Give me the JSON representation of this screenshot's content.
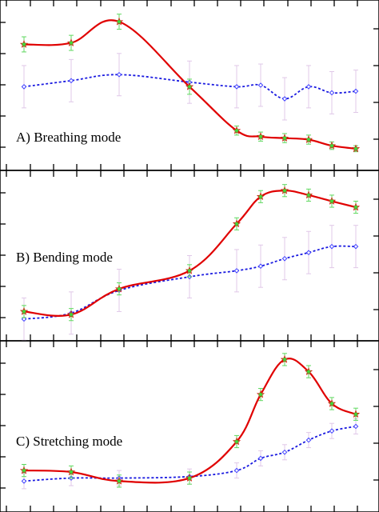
{
  "colors": {
    "solid_line": "#e00000",
    "solid_marker": "#3cdc3c",
    "solid_errorbar": "#60d860",
    "dotted_line": "#1a1ae0",
    "dotted_marker": "#4040ff",
    "dotted_errorbar": "#e0c8e8",
    "frame": "#000000"
  },
  "chart_data": [
    {
      "type": "line",
      "panel_label": "A)  Breathing mode",
      "grid": false,
      "ylim": [
        0,
        100
      ],
      "x": [
        0,
        2,
        4,
        7,
        9,
        10,
        11,
        12,
        13,
        14
      ],
      "series": [
        {
          "style": "solid",
          "marker": "star",
          "values": [
            77,
            78,
            92,
            49,
            20,
            16,
            15,
            14,
            10,
            8
          ],
          "errors": [
            5,
            5,
            5,
            5,
            3,
            3,
            3,
            3,
            2.5,
            2
          ]
        },
        {
          "style": "dotted",
          "marker": "diamond",
          "values": [
            49,
            53,
            57,
            52,
            49,
            50,
            41,
            49,
            45,
            46
          ],
          "errors": [
            14,
            14,
            14,
            14,
            14,
            14,
            14,
            14,
            14,
            14
          ]
        }
      ]
    },
    {
      "type": "line",
      "panel_label": "B)  Bending mode",
      "grid": false,
      "ylim": [
        0,
        100
      ],
      "x": [
        0,
        2,
        4,
        7,
        9,
        10,
        11,
        12,
        13,
        14
      ],
      "series": [
        {
          "style": "solid",
          "marker": "star",
          "values": [
            13,
            11,
            28,
            40,
            71,
            89,
            93,
            90,
            86,
            82
          ],
          "errors": [
            4,
            4,
            4,
            4,
            4,
            4,
            4,
            4,
            4,
            4
          ]
        },
        {
          "style": "dotted",
          "marker": "diamond",
          "values": [
            8,
            12,
            27,
            36,
            40,
            43,
            48,
            52,
            56,
            56
          ],
          "errors": [
            14,
            14,
            14,
            14,
            14,
            14,
            14,
            14,
            14,
            14
          ]
        }
      ]
    },
    {
      "type": "line",
      "panel_label": "C)  Stretching mode",
      "grid": false,
      "ylim": [
        0,
        100
      ],
      "x": [
        0,
        2,
        4,
        7,
        9,
        10,
        11,
        12,
        13,
        14
      ],
      "series": [
        {
          "style": "solid",
          "marker": "star",
          "values": [
            21,
            20,
            14,
            16,
            40,
            71,
            94,
            86,
            65,
            58
          ],
          "errors": [
            4,
            4,
            4,
            4,
            4,
            4,
            4,
            4,
            4,
            4
          ]
        },
        {
          "style": "dotted",
          "marker": "diamond",
          "values": [
            14,
            16,
            16,
            17,
            21,
            29,
            33,
            41,
            47,
            50
          ],
          "errors": [
            5,
            5,
            5,
            5,
            5,
            5,
            5,
            5,
            5,
            5
          ]
        }
      ]
    }
  ]
}
